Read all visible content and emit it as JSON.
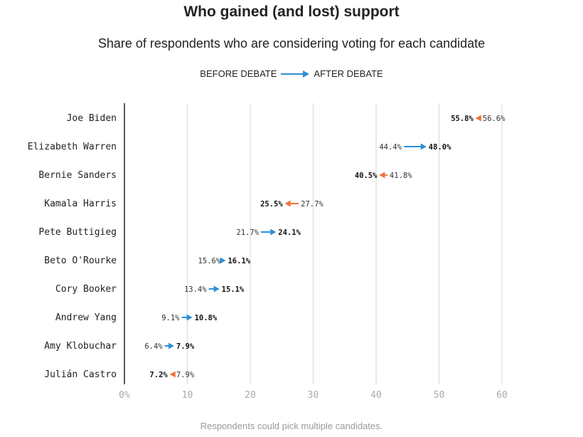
{
  "chart_data": {
    "type": "arrow-dot",
    "title": "Who gained (and lost) support",
    "subtitle": "Share of respondents who are considering voting for each candidate",
    "legend": {
      "before_label": "BEFORE DEBATE",
      "after_label": "AFTER DEBATE"
    },
    "footnote": "Respondents could pick multiple candidates.",
    "xlim": [
      0,
      60
    ],
    "xticks": [
      0,
      10,
      20,
      30,
      40,
      50,
      60
    ],
    "xtick_labels": [
      "0%",
      "10",
      "20",
      "30",
      "40",
      "50",
      "60"
    ],
    "candidates": [
      {
        "name": "Joe Biden",
        "before": 56.6,
        "after": 55.8,
        "before_label": "56.6%",
        "after_label": "55.8%"
      },
      {
        "name": "Elizabeth Warren",
        "before": 44.4,
        "after": 48.0,
        "before_label": "44.4%",
        "after_label": "48.0%"
      },
      {
        "name": "Bernie Sanders",
        "before": 41.8,
        "after": 40.5,
        "before_label": "41.8%",
        "after_label": "40.5%"
      },
      {
        "name": "Kamala Harris",
        "before": 27.7,
        "after": 25.5,
        "before_label": "27.7%",
        "after_label": "25.5%"
      },
      {
        "name": "Pete Buttigieg",
        "before": 21.7,
        "after": 24.1,
        "before_label": "21.7%",
        "after_label": "24.1%"
      },
      {
        "name": "Beto O'Rourke",
        "before": 15.6,
        "after": 16.1,
        "before_label": "15.6%",
        "after_label": "16.1%"
      },
      {
        "name": "Cory Booker",
        "before": 13.4,
        "after": 15.1,
        "before_label": "13.4%",
        "after_label": "15.1%"
      },
      {
        "name": "Andrew Yang",
        "before": 9.1,
        "after": 10.8,
        "before_label": "9.1%",
        "after_label": "10.8%"
      },
      {
        "name": "Amy Klobuchar",
        "before": 6.4,
        "after": 7.9,
        "before_label": "6.4%",
        "after_label": "7.9%"
      },
      {
        "name": "Julián Castro",
        "before": 7.9,
        "after": 7.2,
        "before_label": "7.9%",
        "after_label": "7.2%"
      }
    ],
    "colors": {
      "gain": "#2b8fd6",
      "loss": "#f0733a",
      "grid": "#dcdcdc",
      "axis": "#222222"
    }
  }
}
